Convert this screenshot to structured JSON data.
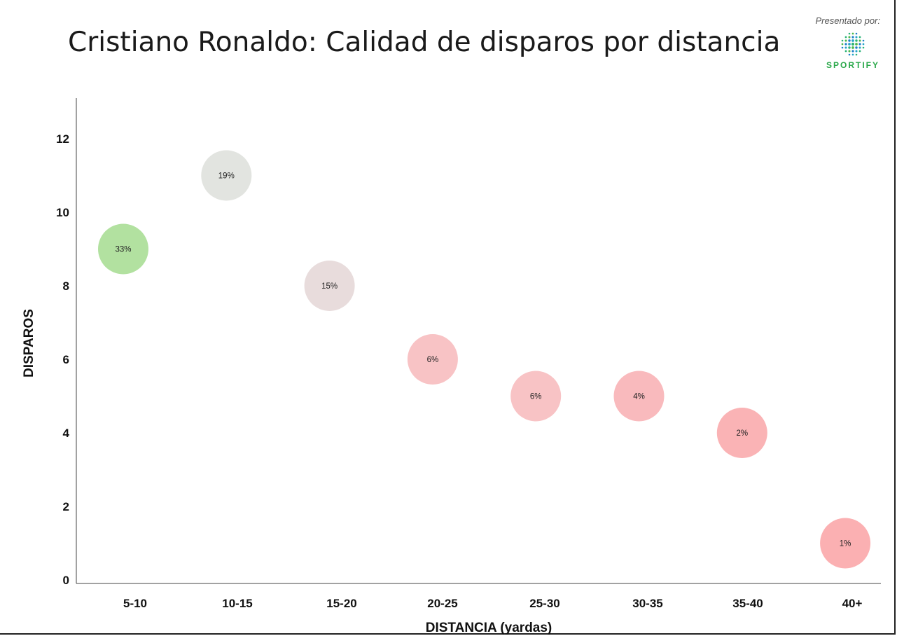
{
  "header": {
    "title": "Cristiano Ronaldo: Calidad de disparos por distancia",
    "presented_by": "Presentado por:",
    "brand_name": "SPORTIFY",
    "logo_icon": "globe-dots-icon"
  },
  "chart_data": {
    "type": "scatter",
    "xlabel": "DISTANCIA (yardas)",
    "ylabel": "DISPAROS",
    "categories": [
      "5-10",
      "10-15",
      "15-20",
      "20-25",
      "25-30",
      "30-35",
      "35-40",
      "40+"
    ],
    "ylim": [
      0,
      13
    ],
    "yticks": [
      "0",
      "2",
      "4",
      "6",
      "8",
      "10",
      "12"
    ],
    "points": [
      {
        "x": "5-10",
        "y": 9,
        "label": "33%",
        "color": "#b2e1a0"
      },
      {
        "x": "10-15",
        "y": 11,
        "label": "19%",
        "color": "#e2e4e0"
      },
      {
        "x": "15-20",
        "y": 8,
        "label": "15%",
        "color": "#e8dcdc"
      },
      {
        "x": "20-25",
        "y": 6,
        "label": "6%",
        "color": "#f8c3c5"
      },
      {
        "x": "25-30",
        "y": 5,
        "label": "6%",
        "color": "#f8c3c5"
      },
      {
        "x": "30-35",
        "y": 5,
        "label": "4%",
        "color": "#f9babd"
      },
      {
        "x": "35-40",
        "y": 4,
        "label": "2%",
        "color": "#fab3b5"
      },
      {
        "x": "40+",
        "y": 1,
        "label": "1%",
        "color": "#fbb0b2"
      }
    ],
    "grid": false,
    "legend": "none"
  }
}
